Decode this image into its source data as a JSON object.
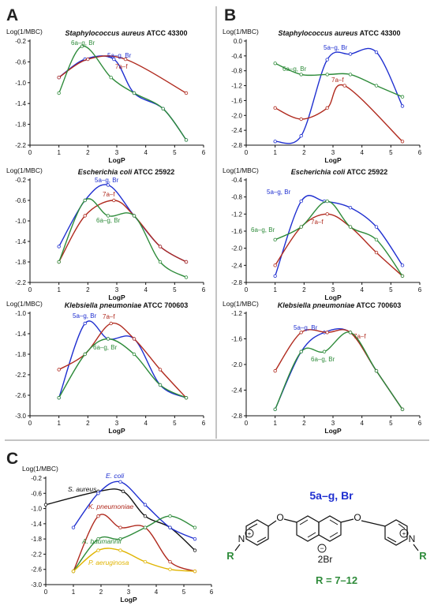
{
  "panel_letters": [
    "A",
    "B",
    "C"
  ],
  "chart_data": [
    {
      "id": "A1",
      "type": "line",
      "title_italic": "Staphylococcus aureus",
      "title_rest": " ATCC 43300",
      "ylabel": "Log(1/MBC)",
      "xlabel": "LogP",
      "xlim": [
        0,
        6
      ],
      "ylim": [
        -2.2,
        -0.2
      ],
      "yticks": [
        -0.2,
        -0.6,
        -1.0,
        -1.4,
        -1.8,
        -2.2
      ],
      "xticks": [
        0,
        1,
        2,
        3,
        4,
        5,
        6
      ],
      "series": [
        {
          "name": "5a–g, Br",
          "color": "#1f2fd0",
          "x": [
            1.0,
            1.9,
            2.9,
            3.6,
            4.6,
            5.4
          ],
          "y": [
            -0.9,
            -0.55,
            -0.55,
            -1.2,
            -1.5,
            -2.1
          ]
        },
        {
          "name": "7a–f",
          "color": "#b02a1e",
          "x": [
            1.0,
            2.0,
            3.3,
            5.4
          ],
          "y": [
            -0.9,
            -0.55,
            -0.55,
            -1.2
          ]
        },
        {
          "name": "6a–g, Br",
          "color": "#2e8b3a",
          "x": [
            1.0,
            1.8,
            2.8,
            3.6,
            4.6,
            5.4
          ],
          "y": [
            -1.2,
            -0.3,
            -0.9,
            -1.2,
            -1.5,
            -2.1
          ]
        }
      ],
      "labels": [
        "5a–g, Br",
        "7a–f",
        "6a–g, Br"
      ]
    },
    {
      "id": "B1",
      "type": "line",
      "title_italic": "Staphylococcus aureus",
      "title_rest": " ATCC 43300",
      "ylabel": "Log(1/MBC)",
      "xlabel": "LogP",
      "xlim": [
        0,
        6
      ],
      "ylim": [
        -2.8,
        0.0
      ],
      "yticks": [
        0.0,
        -0.4,
        -0.8,
        -1.2,
        -1.6,
        -2.0,
        -2.4,
        -2.8
      ],
      "xticks": [
        0,
        1,
        2,
        3,
        4,
        5,
        6
      ],
      "series": [
        {
          "name": "5a–g, Br",
          "color": "#1f2fd0",
          "x": [
            1.0,
            1.9,
            2.8,
            3.6,
            4.5,
            5.4
          ],
          "y": [
            -2.7,
            -2.55,
            -0.5,
            -0.35,
            -0.3,
            -1.75
          ]
        },
        {
          "name": "7a–f",
          "color": "#b02a1e",
          "x": [
            1.0,
            1.9,
            2.8,
            3.4,
            5.4
          ],
          "y": [
            -1.8,
            -2.1,
            -1.8,
            -1.2,
            -2.7
          ]
        },
        {
          "name": "6a–g, Br",
          "color": "#2e8b3a",
          "x": [
            1.0,
            1.9,
            2.8,
            3.6,
            4.5,
            5.4
          ],
          "y": [
            -0.6,
            -0.9,
            -0.9,
            -0.9,
            -1.2,
            -1.5
          ]
        }
      ],
      "labels": [
        "5a–g, Br",
        "7a–f",
        "6a–g, Br"
      ]
    },
    {
      "id": "A2",
      "type": "line",
      "title_italic": "Escherichia coli",
      "title_rest": "  ATCC 25922",
      "ylabel": "Log(1/MBC)",
      "xlabel": "LogP",
      "xlim": [
        0,
        6
      ],
      "ylim": [
        -2.2,
        -0.2
      ],
      "yticks": [
        -0.2,
        -0.6,
        -1.0,
        -1.4,
        -1.8,
        -2.2
      ],
      "xticks": [
        0,
        1,
        2,
        3,
        4,
        5,
        6
      ],
      "series": [
        {
          "name": "5a–g, Br",
          "color": "#1f2fd0",
          "x": [
            1.0,
            1.9,
            2.7,
            3.6,
            4.5,
            5.4
          ],
          "y": [
            -1.5,
            -0.6,
            -0.3,
            -0.9,
            -1.5,
            -1.8
          ]
        },
        {
          "name": "7a–f",
          "color": "#b02a1e",
          "x": [
            1.0,
            1.9,
            2.9,
            3.6,
            4.5,
            5.4
          ],
          "y": [
            -1.8,
            -0.9,
            -0.6,
            -0.9,
            -1.5,
            -1.8
          ]
        },
        {
          "name": "6a–g, Br",
          "color": "#2e8b3a",
          "x": [
            1.0,
            1.9,
            2.7,
            3.6,
            4.5,
            5.4
          ],
          "y": [
            -1.8,
            -0.6,
            -0.9,
            -0.9,
            -1.8,
            -2.1
          ]
        }
      ],
      "labels": [
        "5a–g, Br",
        "7a–f",
        "6a–g, Br"
      ]
    },
    {
      "id": "B2",
      "type": "line",
      "title_italic": "Escherichia coli",
      "title_rest": "  ATCC 25922",
      "ylabel": "Log(1/MBC)",
      "xlabel": "LogP",
      "xlim": [
        0,
        6
      ],
      "ylim": [
        -2.8,
        -0.4
      ],
      "yticks": [
        -0.4,
        -0.8,
        -1.2,
        -1.6,
        -2.0,
        -2.4,
        -2.8
      ],
      "xticks": [
        0,
        1,
        2,
        3,
        4,
        5,
        6
      ],
      "series": [
        {
          "name": "5a–g, Br",
          "color": "#1f2fd0",
          "x": [
            1.0,
            1.9,
            2.7,
            3.6,
            4.5,
            5.4
          ],
          "y": [
            -2.65,
            -0.9,
            -0.9,
            -1.05,
            -1.5,
            -2.4
          ]
        },
        {
          "name": "7a–f",
          "color": "#b02a1e",
          "x": [
            1.0,
            1.9,
            2.8,
            3.6,
            4.5,
            5.4
          ],
          "y": [
            -2.4,
            -1.5,
            -1.2,
            -1.5,
            -2.1,
            -2.65
          ]
        },
        {
          "name": "6a–g, Br",
          "color": "#2e8b3a",
          "x": [
            1.0,
            1.9,
            2.8,
            3.6,
            4.5,
            5.4
          ],
          "y": [
            -1.8,
            -1.5,
            -0.9,
            -1.5,
            -1.8,
            -2.65
          ]
        }
      ],
      "labels": [
        "5a–g, Br",
        "7a–f",
        "6a–g, Br"
      ]
    },
    {
      "id": "A3",
      "type": "line",
      "title_italic": "Klebsiella pneumoniae",
      "title_rest": " ATCC 700603",
      "ylabel": "Log(1/MBC)",
      "xlabel": "LogP",
      "xlim": [
        0,
        6
      ],
      "ylim": [
        -3.0,
        -1.0
      ],
      "yticks": [
        -1.0,
        -1.4,
        -1.8,
        -2.2,
        -2.6,
        -3.0
      ],
      "xticks": [
        0,
        1,
        2,
        3,
        4,
        5,
        6
      ],
      "series": [
        {
          "name": "5a–g, Br",
          "color": "#1f2fd0",
          "x": [
            1.0,
            1.9,
            2.7,
            3.6,
            4.5,
            5.4
          ],
          "y": [
            -2.65,
            -1.2,
            -1.5,
            -1.5,
            -2.4,
            -2.65
          ]
        },
        {
          "name": "7a–f",
          "color": "#b02a1e",
          "x": [
            1.0,
            1.9,
            2.8,
            3.6,
            4.5,
            5.4
          ],
          "y": [
            -2.1,
            -1.8,
            -1.2,
            -1.5,
            -2.1,
            -2.65
          ]
        },
        {
          "name": "6a–g, Br",
          "color": "#2e8b3a",
          "x": [
            1.0,
            1.9,
            2.7,
            3.6,
            4.5,
            5.4
          ],
          "y": [
            -2.65,
            -1.8,
            -1.5,
            -1.8,
            -2.4,
            -2.65
          ]
        }
      ],
      "labels": [
        "5a–g, Br",
        "7a–f",
        "6a–g, Br"
      ]
    },
    {
      "id": "B3",
      "type": "line",
      "title_italic": "Klebsiella pneumoniae",
      "title_rest": " ATCC 700603",
      "ylabel": "Log(1/MBC)",
      "xlabel": "LogP",
      "xlim": [
        0,
        6
      ],
      "ylim": [
        -2.8,
        -1.2
      ],
      "yticks": [
        -1.2,
        -1.6,
        -2.0,
        -2.4,
        -2.8
      ],
      "xticks": [
        0,
        1,
        2,
        3,
        4,
        5,
        6
      ],
      "series": [
        {
          "name": "5a–g, Br",
          "color": "#1f2fd0",
          "x": [
            1.0,
            1.9,
            2.7,
            3.6,
            4.5,
            5.4
          ],
          "y": [
            -2.7,
            -1.8,
            -1.5,
            -1.5,
            -2.1,
            -2.7
          ]
        },
        {
          "name": "7a–f",
          "color": "#b02a1e",
          "x": [
            1.0,
            1.9,
            2.8,
            3.6,
            4.5,
            5.4
          ],
          "y": [
            -2.1,
            -1.5,
            -1.5,
            -1.5,
            -2.1,
            -2.7
          ]
        },
        {
          "name": "6a–g, Br",
          "color": "#2e8b3a",
          "x": [
            1.0,
            1.9,
            2.7,
            3.6,
            4.5,
            5.4
          ],
          "y": [
            -2.7,
            -1.8,
            -1.8,
            -1.5,
            -2.1,
            -2.7
          ]
        }
      ],
      "labels": [
        "5a–g, Br",
        "7a–f",
        "6a–g, Br"
      ]
    },
    {
      "id": "C",
      "type": "line",
      "title_italic": "",
      "title_rest": "",
      "ylabel": "Log(1/MBC)",
      "xlabel": "LogP",
      "xlim": [
        0,
        6
      ],
      "ylim": [
        -3.0,
        -0.2
      ],
      "yticks": [
        -0.2,
        -0.6,
        -1.0,
        -1.4,
        -1.8,
        -2.2,
        -2.6,
        -3.0
      ],
      "xticks": [
        0,
        1,
        2,
        3,
        4,
        5,
        6
      ],
      "series": [
        {
          "name": "S. aureus",
          "color": "#111111",
          "x": [
            0.0,
            1.9,
            2.8,
            3.6,
            4.5,
            5.4
          ],
          "y": [
            -0.9,
            -0.55,
            -0.55,
            -1.2,
            -1.5,
            -2.1
          ]
        },
        {
          "name": "E. coli",
          "color": "#1f2fd0",
          "x": [
            1.0,
            1.9,
            2.7,
            3.6,
            4.5,
            5.4
          ],
          "y": [
            -1.5,
            -0.6,
            -0.3,
            -0.9,
            -1.5,
            -1.8
          ]
        },
        {
          "name": "K. pneumoniae",
          "color": "#b02a1e",
          "x": [
            1.0,
            1.9,
            2.7,
            3.6,
            4.5,
            5.4
          ],
          "y": [
            -2.65,
            -1.2,
            -1.5,
            -1.5,
            -2.4,
            -2.65
          ]
        },
        {
          "name": "A. baumannii",
          "color": "#2e8b3a",
          "x": [
            1.0,
            1.9,
            2.7,
            3.6,
            4.5,
            5.4
          ],
          "y": [
            -2.65,
            -1.8,
            -1.8,
            -1.5,
            -1.2,
            -1.5
          ]
        },
        {
          "name": "P. aeruginosa",
          "color": "#e0b400",
          "x": [
            1.0,
            1.9,
            2.7,
            3.6,
            4.5,
            5.4
          ],
          "y": [
            -2.65,
            -2.1,
            -2.1,
            -2.4,
            -2.6,
            -2.65
          ]
        }
      ],
      "labels": [
        "S. aureus",
        "E. coli",
        "K. pneumoniae",
        "A. baumannii",
        "P. aeruginosa"
      ]
    }
  ],
  "structure": {
    "title": "5a–g, Br",
    "r_left": "R",
    "r_right": "R",
    "n_left": "N",
    "n_right": "N",
    "o_left": "O",
    "o_right": "O",
    "counter": "2Br",
    "r_def_label": "R",
    "r_def_value": " = 7–12"
  }
}
